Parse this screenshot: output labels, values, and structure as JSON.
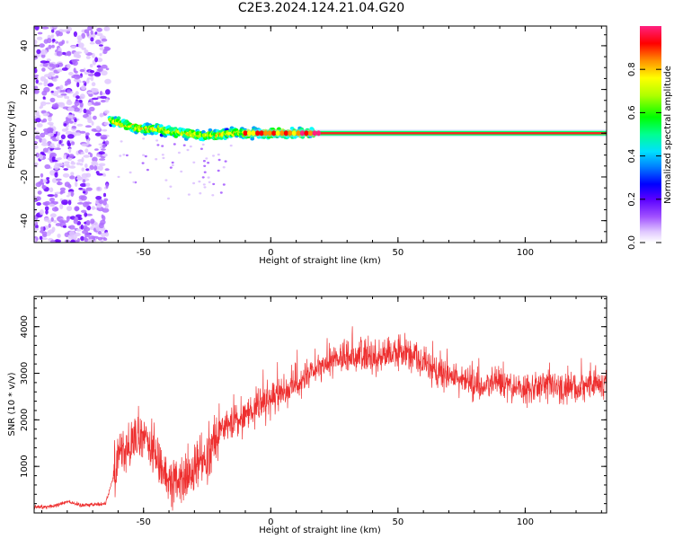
{
  "title": "C2E3.2024.124.21.04.G20",
  "chart_data": [
    {
      "type": "heatmap",
      "title": "C2E3.2024.124.21.04.G20",
      "xlabel": "Height of straight line (km)",
      "ylabel": "Frequency (Hz)",
      "xlim": [
        -93,
        132
      ],
      "ylim": [
        -50,
        49
      ],
      "xticks": [
        -50,
        0,
        50,
        100
      ],
      "yticks": [
        -40,
        -20,
        0,
        20,
        40
      ],
      "colorbar": {
        "label": "Normalized spectral amplitude",
        "ticks": [
          0.0,
          0.2,
          0.4,
          0.6,
          0.8
        ],
        "range": [
          0,
          1
        ],
        "colormap": [
          "#ffffff",
          "#e0c8ff",
          "#b070ff",
          "#6a00ff",
          "#0000ff",
          "#00a0ff",
          "#00ffff",
          "#00ff80",
          "#00ff00",
          "#a0ff00",
          "#ffff00",
          "#ff9000",
          "#ff0000",
          "#ff2080"
        ]
      },
      "noise_region_km": [
        -93,
        -64
      ],
      "signal_ridge": {
        "x": [
          -63,
          -58,
          -52,
          -46,
          -40,
          -34,
          -28,
          -22,
          -16,
          -10,
          -5,
          0,
          5,
          10,
          15,
          17
        ],
        "frequency": [
          6,
          4,
          2,
          2,
          1,
          0,
          -1,
          -1,
          0,
          0,
          0,
          0,
          0,
          0,
          0,
          0
        ]
      },
      "carrier_frequency": 0,
      "carrier_start_km": -10
    },
    {
      "type": "line",
      "xlabel": "Height of straight line (km)",
      "ylabel": "SNR (10 * v/v)",
      "xlim": [
        -93,
        132
      ],
      "ylim": [
        0,
        4650
      ],
      "xticks": [
        -50,
        0,
        50,
        100
      ],
      "yticks": [
        1000,
        2000,
        3000,
        4000
      ],
      "color": "#ee3030",
      "series": [
        {
          "x": [
            -93,
            -85,
            -80,
            -75,
            -70,
            -65,
            -62,
            -60,
            -55,
            -50,
            -45,
            -40,
            -35,
            -30,
            -25,
            -20,
            -15,
            -10,
            -5,
            0,
            5,
            10,
            15,
            20,
            25,
            30,
            35,
            40,
            45,
            50,
            55,
            60,
            65,
            70,
            75,
            80,
            85,
            90,
            95,
            100,
            105,
            110,
            115,
            120,
            125,
            132
          ],
          "values": [
            120,
            150,
            250,
            170,
            180,
            200,
            750,
            1350,
            1400,
            1700,
            1150,
            750,
            650,
            900,
            1300,
            1800,
            1900,
            2100,
            2300,
            2400,
            2600,
            2800,
            2950,
            3100,
            3300,
            3350,
            3400,
            3300,
            3400,
            3450,
            3400,
            3200,
            3050,
            2950,
            2850,
            2750,
            2700,
            2800,
            2700,
            2650,
            2700,
            2750,
            2650,
            2700,
            2750,
            2800
          ]
        }
      ]
    }
  ]
}
